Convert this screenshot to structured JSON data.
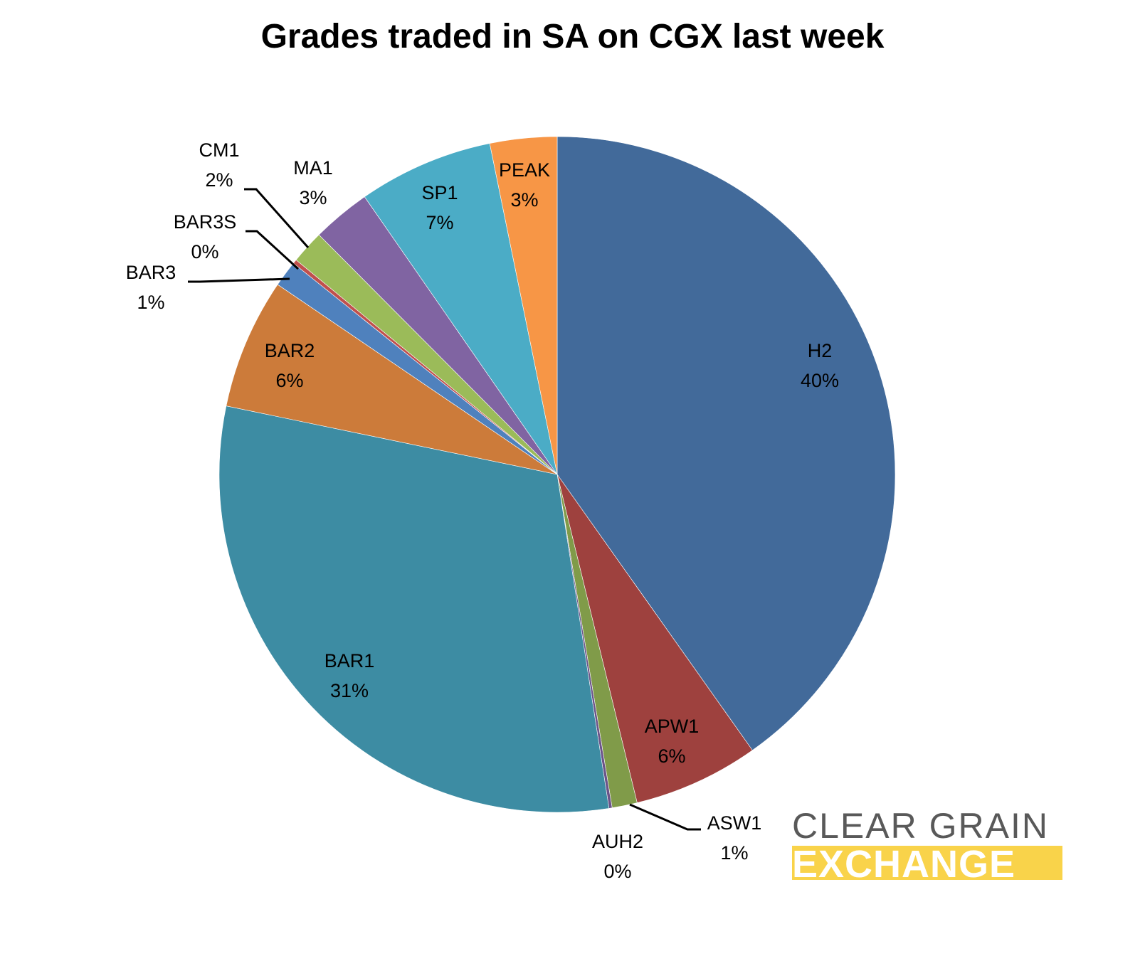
{
  "chart_data": {
    "type": "pie",
    "title": "Grades traded in SA on CGX last week",
    "start_angle_deg": 0,
    "direction": "clockwise",
    "slices": [
      {
        "label": "H2",
        "pct_label": "40%",
        "value": 40.2,
        "color": "#426a9a"
      },
      {
        "label": "APW1",
        "pct_label": "6%",
        "value": 6.0,
        "color": "#9e413e"
      },
      {
        "label": "ASW1",
        "pct_label": "1%",
        "value": 1.2,
        "color": "#809b49"
      },
      {
        "label": "AUH2",
        "pct_label": "0%",
        "value": 0.15,
        "color": "#6b5489"
      },
      {
        "label": "BAR1",
        "pct_label": "31%",
        "value": 30.7,
        "color": "#3d8ca3"
      },
      {
        "label": "BAR2",
        "pct_label": "6%",
        "value": 6.25,
        "color": "#cc7b3a"
      },
      {
        "label": "BAR3",
        "pct_label": "1%",
        "value": 1.25,
        "color": "#4f81bd"
      },
      {
        "label": "BAR3S",
        "pct_label": "0%",
        "value": 0.2,
        "color": "#c0504d"
      },
      {
        "label": "CM1",
        "pct_label": "2%",
        "value": 1.6,
        "color": "#9bbb59"
      },
      {
        "label": "MA1",
        "pct_label": "3%",
        "value": 2.8,
        "color": "#8064a2"
      },
      {
        "label": "SP1",
        "pct_label": "7%",
        "value": 6.45,
        "color": "#4bacc6"
      },
      {
        "label": "PEAK",
        "pct_label": "3%",
        "value": 3.2,
        "color": "#f79646"
      }
    ],
    "legend": "none",
    "data_labels": "category name and percentage"
  },
  "logo": {
    "line1": "CLEAR GRAIN",
    "line2": "EXCHANGE",
    "text_color": "#595959",
    "bar_color": "#f9d34a"
  }
}
